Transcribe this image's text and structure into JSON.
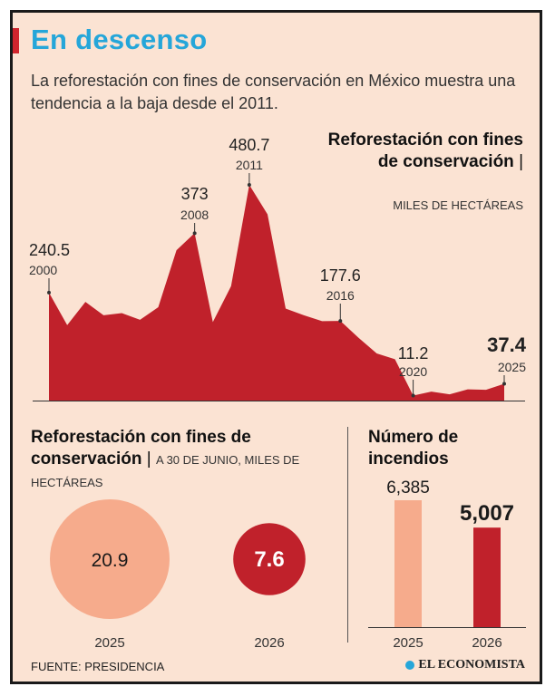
{
  "title": "En descenso",
  "subtitle": "La reforestación con fines de conservación en México muestra una tendencia a la baja desde el 2011.",
  "area_chart_title": "Reforestación con fines de conservación",
  "area_chart_unit": "MILES DE HECTÁREAS",
  "left_panel": {
    "title": "Reforestación con fines de conservación",
    "unit": "A 30 DE JUNIO, MILES DE HECTÁREAS"
  },
  "right_panel": {
    "title": "Número de incendios"
  },
  "source": "FUENTE: PRESIDENCIA",
  "logo": "EL ECONOMISTA",
  "colors": {
    "red": "#c0212b",
    "salmon": "#f6ab8c",
    "title_blue": "#25a6d9",
    "background": "#fbe3d3"
  },
  "chart_data": [
    {
      "type": "area",
      "title": "Reforestación con fines de conservación",
      "ylabel": "MILES DE HECTÁREAS",
      "x": [
        2000,
        2001,
        2002,
        2003,
        2004,
        2005,
        2006,
        2007,
        2008,
        2009,
        2010,
        2011,
        2012,
        2013,
        2014,
        2015,
        2016,
        2017,
        2018,
        2019,
        2020,
        2021,
        2022,
        2023,
        2024,
        2025
      ],
      "values": [
        240.5,
        168,
        220,
        190,
        195,
        180,
        208,
        335,
        373,
        175,
        255,
        480.7,
        415,
        205,
        190,
        177,
        177.6,
        140,
        105,
        92,
        11.2,
        20,
        14,
        25,
        24,
        37.4
      ],
      "ylim": [
        0,
        500
      ],
      "annotations": [
        {
          "year": "2000",
          "value": "240.5"
        },
        {
          "year": "2008",
          "value": "373"
        },
        {
          "year": "2011",
          "value": "480.7"
        },
        {
          "year": "2016",
          "value": "177.6"
        },
        {
          "year": "2020",
          "value": "11.2"
        },
        {
          "year": "2025",
          "value": "37.4"
        }
      ]
    },
    {
      "type": "bubble",
      "title": "Reforestación con fines de conservación",
      "ylabel": "A 30 DE JUNIO, MILES DE HECTÁREAS",
      "categories": [
        "2025",
        "2026"
      ],
      "values": [
        20.9,
        7.6
      ],
      "value_labels": [
        "20.9",
        "7.6"
      ]
    },
    {
      "type": "bar",
      "title": "Número de incendios",
      "categories": [
        "2025",
        "2026"
      ],
      "values": [
        6385,
        5007
      ],
      "value_labels": [
        "6,385",
        "5,007"
      ],
      "ylim": [
        0,
        7000
      ]
    }
  ]
}
